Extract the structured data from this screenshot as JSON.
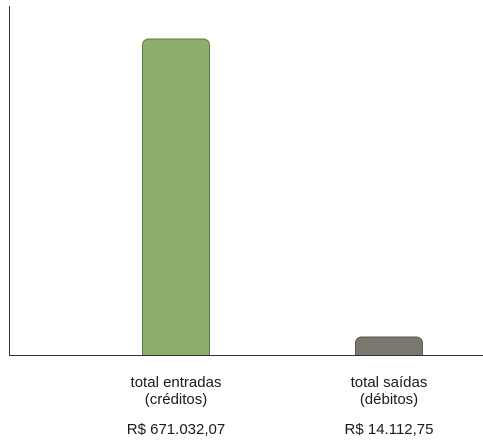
{
  "chart_data": {
    "type": "bar",
    "categories": [
      {
        "line1": "total entradas",
        "line2": "(créditos)"
      },
      {
        "line1": "total saídas",
        "line2": "(débitos)"
      }
    ],
    "values": [
      671032.07,
      14112.75
    ],
    "value_labels": [
      "R$ 671.032,07",
      "R$ 14.112,75"
    ],
    "colors": [
      "#8cad6c",
      "#7a776f"
    ],
    "bar_stroke_colors": [
      "#5e7a47",
      "#5a5852"
    ],
    "axis_color": "#333333",
    "grid": false,
    "title": "",
    "xlabel": "",
    "ylabel": ""
  }
}
